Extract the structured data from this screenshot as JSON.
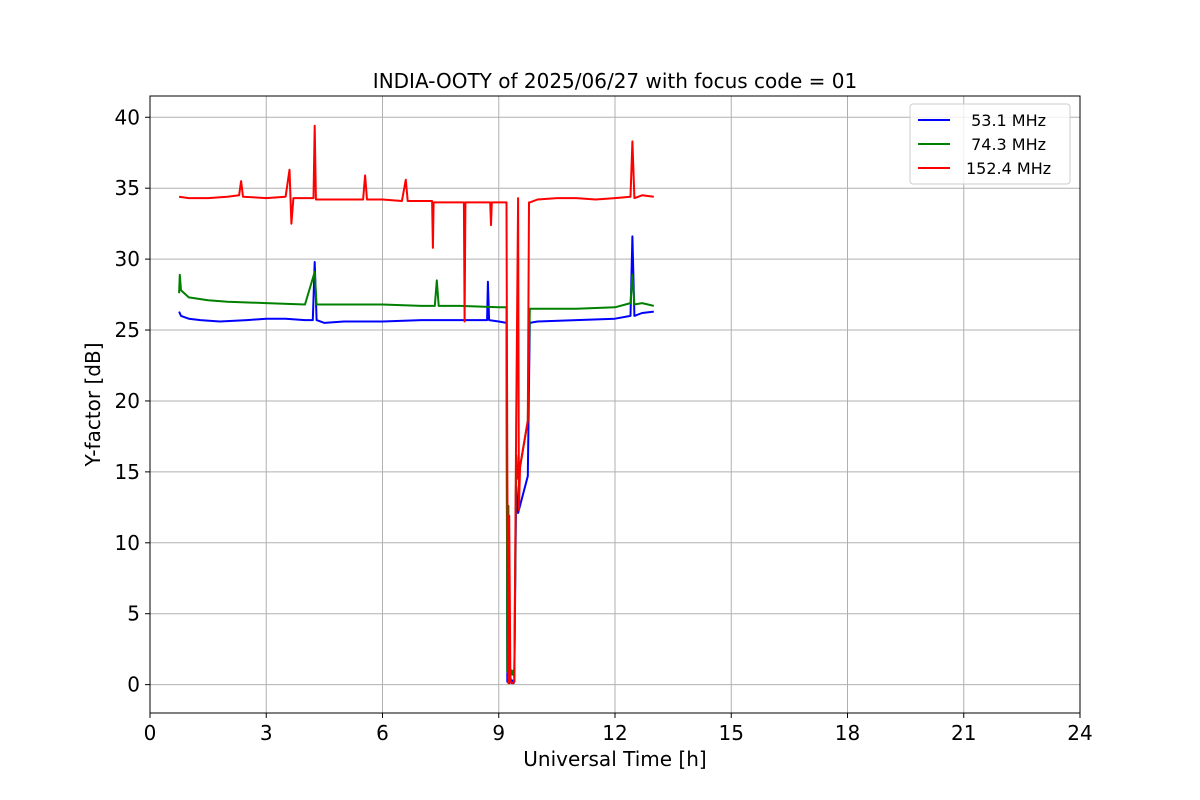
{
  "chart_data": {
    "type": "line",
    "title": "INDIA-OOTY of 2025/06/27 with focus code = 01",
    "xlabel": "Universal Time [h]",
    "ylabel": "Y-factor [dB]",
    "xlim": [
      0,
      24
    ],
    "ylim": [
      -2,
      41.5
    ],
    "xticks": [
      0,
      3,
      6,
      9,
      12,
      15,
      18,
      21,
      24
    ],
    "yticks": [
      0,
      5,
      10,
      15,
      20,
      25,
      30,
      35,
      40
    ],
    "grid": true,
    "legend_position": "top-right",
    "series": [
      {
        "name": " 53.1 MHz",
        "color": "#0000ff",
        "x": [
          0.75,
          0.8,
          1.0,
          1.3,
          1.8,
          2.5,
          3.0,
          3.5,
          4.0,
          4.2,
          4.25,
          4.3,
          4.5,
          5.0,
          6.0,
          7.0,
          8.0,
          8.7,
          8.72,
          8.75,
          9.0,
          9.2,
          9.22,
          9.25,
          9.27,
          9.3,
          9.33,
          9.35,
          9.38,
          9.4,
          9.45,
          9.5,
          9.75,
          9.8,
          10.0,
          11.0,
          12.0,
          12.4,
          12.45,
          12.5,
          12.7,
          13.0
        ],
        "y": [
          26.3,
          26.0,
          25.8,
          25.7,
          25.6,
          25.7,
          25.8,
          25.8,
          25.7,
          25.7,
          29.8,
          25.7,
          25.5,
          25.6,
          25.6,
          25.7,
          25.7,
          25.7,
          28.4,
          25.7,
          25.6,
          25.5,
          0.2,
          11.9,
          0.1,
          0.5,
          0.1,
          0.3,
          0.1,
          0.2,
          14.0,
          12.1,
          14.7,
          25.5,
          25.6,
          25.7,
          25.8,
          26.0,
          31.6,
          26.0,
          26.2,
          26.3
        ]
      },
      {
        "name": " 74.3 MHz",
        "color": "#008000",
        "x": [
          0.75,
          0.77,
          0.8,
          1.0,
          1.5,
          2.0,
          3.0,
          4.0,
          4.25,
          4.3,
          5.0,
          6.0,
          7.0,
          7.35,
          7.4,
          7.45,
          8.0,
          9.0,
          9.2,
          9.22,
          9.25,
          9.27,
          9.3,
          9.33,
          9.35,
          9.38,
          9.4,
          9.45,
          9.5,
          9.75,
          9.8,
          10.0,
          11.0,
          12.0,
          12.4,
          12.45,
          12.5,
          12.7,
          13.0
        ],
        "y": [
          27.6,
          28.9,
          27.8,
          27.3,
          27.1,
          27.0,
          26.9,
          26.8,
          29.1,
          26.8,
          26.8,
          26.8,
          26.7,
          26.7,
          28.5,
          26.7,
          26.7,
          26.6,
          26.6,
          0.9,
          12.6,
          1.1,
          0.6,
          1.0,
          0.7,
          1.0,
          0.6,
          16.2,
          14.5,
          18.6,
          26.5,
          26.5,
          26.5,
          26.6,
          26.9,
          28.9,
          26.8,
          26.9,
          26.7
        ]
      },
      {
        "name": "152.4 MHz",
        "color": "#ff0000",
        "x": [
          0.75,
          1.0,
          1.5,
          2.0,
          2.3,
          2.35,
          2.4,
          3.0,
          3.5,
          3.6,
          3.65,
          3.7,
          4.0,
          4.22,
          4.25,
          4.28,
          5.0,
          5.5,
          5.55,
          5.6,
          6.0,
          6.5,
          6.6,
          6.65,
          7.0,
          7.28,
          7.3,
          7.32,
          8.0,
          8.1,
          8.12,
          8.14,
          8.5,
          8.78,
          8.8,
          8.82,
          9.0,
          9.2,
          9.22,
          9.25,
          9.27,
          9.3,
          9.35,
          9.4,
          9.45,
          9.5,
          9.52,
          9.55,
          9.75,
          9.78,
          9.8,
          10.0,
          10.5,
          11.0,
          11.5,
          12.0,
          12.4,
          12.45,
          12.5,
          12.7,
          13.0
        ],
        "y": [
          34.4,
          34.3,
          34.3,
          34.4,
          34.5,
          35.5,
          34.4,
          34.3,
          34.4,
          36.3,
          32.5,
          34.3,
          34.3,
          34.3,
          39.4,
          34.2,
          34.2,
          34.2,
          35.9,
          34.2,
          34.2,
          34.1,
          35.6,
          34.1,
          34.1,
          34.1,
          30.8,
          34.0,
          34.0,
          34.0,
          25.6,
          34.0,
          34.0,
          34.0,
          32.4,
          34.0,
          34.0,
          34.0,
          15.4,
          0.1,
          11.9,
          0.2,
          0.1,
          0.2,
          18.6,
          34.3,
          12.3,
          15.4,
          18.6,
          34.0,
          34.0,
          34.2,
          34.3,
          34.3,
          34.2,
          34.3,
          34.4,
          38.3,
          34.3,
          34.5,
          34.4
        ]
      }
    ]
  }
}
